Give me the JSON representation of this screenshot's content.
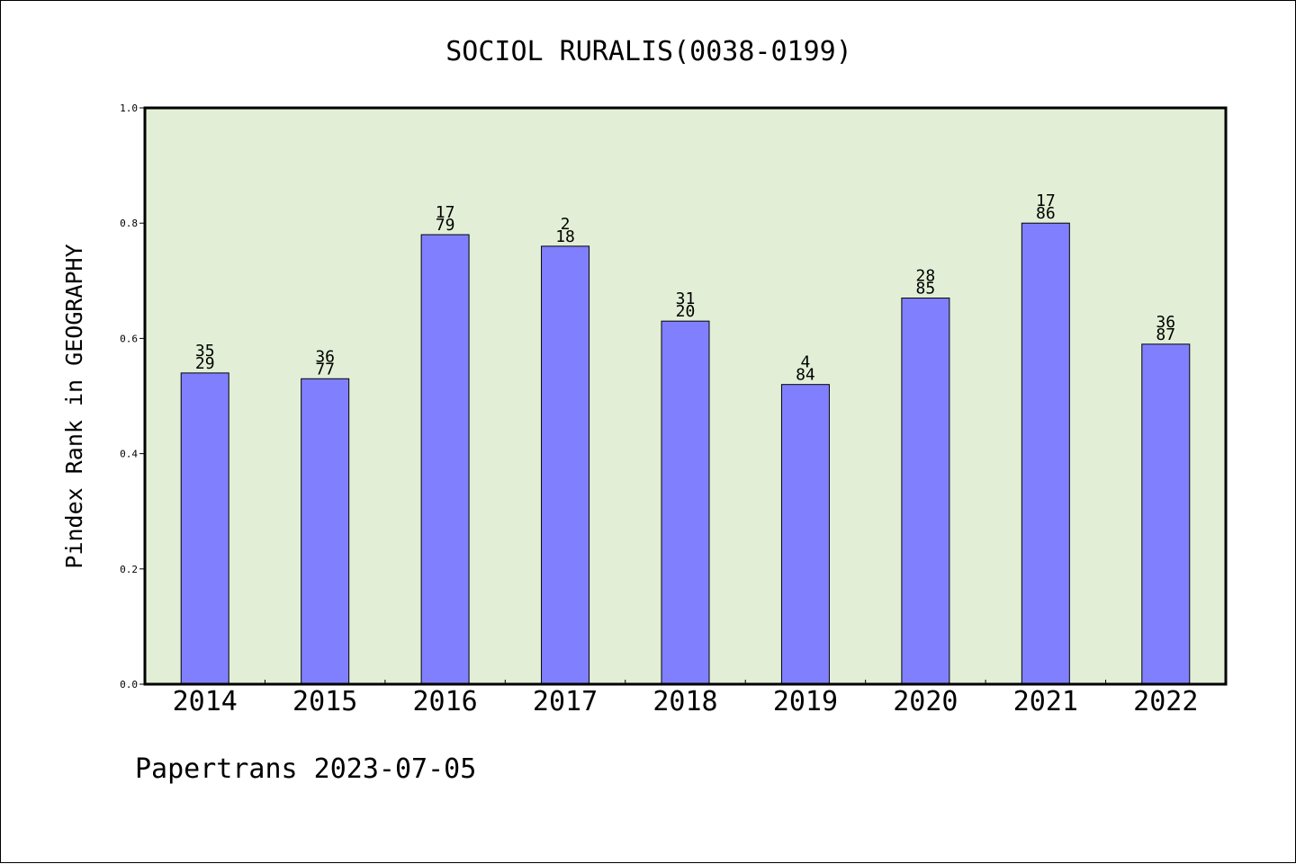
{
  "chart_data": {
    "type": "bar",
    "title": "SOCIOL RURALIS(0038-0199)",
    "xlabel": "",
    "ylabel": "Pindex Rank in GEOGRAPHY",
    "categories": [
      "2014",
      "2015",
      "2016",
      "2017",
      "2018",
      "2019",
      "2020",
      "2021",
      "2022"
    ],
    "values": [
      0.54,
      0.53,
      0.78,
      0.76,
      0.63,
      0.52,
      0.67,
      0.8,
      0.59
    ],
    "labels_upper": [
      "35",
      "36",
      "17",
      "2",
      "31",
      "4",
      "28",
      "17",
      "36"
    ],
    "labels_lower": [
      "29",
      "77",
      "79",
      "18",
      "20",
      "84",
      "85",
      "86",
      "87"
    ],
    "ylim": [
      0,
      1.0
    ],
    "yticks": [
      "0.0",
      "0.2",
      "0.4",
      "0.6",
      "0.8",
      "1.0"
    ],
    "grid": false,
    "legend": "none",
    "colors": {
      "bar": "#8080ff",
      "plot_background": "#e2efd6",
      "axis": "#000000"
    }
  },
  "footer": "Papertrans 2023-07-05"
}
